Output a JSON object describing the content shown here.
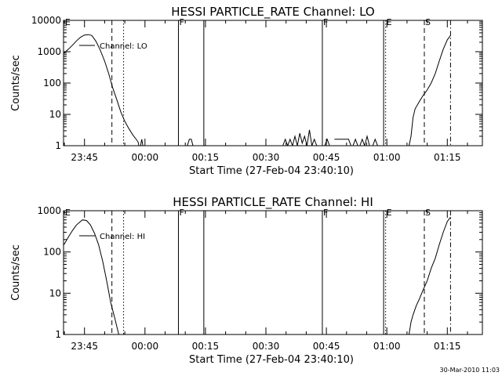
{
  "footer": {
    "timestamp": "30-Mar-2010 11:03"
  },
  "chart_data": [
    {
      "type": "line",
      "title": "HESSI PARTICLE_RATE Channel: LO",
      "xlabel": "Start Time (27-Feb-04 23:40:10)",
      "ylabel": "Counts/sec",
      "yscale": "log",
      "ylim": [
        1,
        10000
      ],
      "xlim_minutes": [
        -5.2,
        98.7
      ],
      "xticks": [
        {
          "t": 0,
          "label": "23:45"
        },
        {
          "t": 15,
          "label": "00:00"
        },
        {
          "t": 30,
          "label": "00:15"
        },
        {
          "t": 45,
          "label": "00:30"
        },
        {
          "t": 60,
          "label": "00:45"
        },
        {
          "t": 75,
          "label": "01:00"
        },
        {
          "t": 90,
          "label": "01:15"
        }
      ],
      "yticks": [
        {
          "v": 1,
          "label": "1"
        },
        {
          "v": 10,
          "label": "10"
        },
        {
          "v": 100,
          "label": "100"
        },
        {
          "v": 1000,
          "label": "1000"
        },
        {
          "v": 10000,
          "label": "10000"
        }
      ],
      "legend": {
        "position": "top-left",
        "entries": [
          "Channel: LO"
        ]
      },
      "grid": false,
      "series": [
        {
          "name": "Channel: LO",
          "segments": [
            [
              [
                -5.1,
                900
              ],
              [
                -4,
                1200
              ],
              [
                -3,
                1600
              ],
              [
                -2,
                2200
              ],
              [
                -1,
                2900
              ],
              [
                0,
                3400
              ],
              [
                1,
                3500
              ],
              [
                1.8,
                3300
              ],
              [
                2.8,
                2200
              ],
              [
                3.8,
                1200
              ],
              [
                5,
                500
              ],
              [
                6,
                200
              ],
              [
                7,
                70
              ],
              [
                8,
                30
              ],
              [
                9,
                12
              ],
              [
                10,
                6
              ],
              [
                11,
                3.5
              ],
              [
                12,
                2.2
              ],
              [
                13,
                1.5
              ],
              [
                13.3,
                1.3
              ],
              [
                13.5,
                1
              ]
            ],
            [
              [
                13.9,
                1
              ],
              [
                14.2,
                1.6
              ],
              [
                14.5,
                1
              ]
            ],
            [
              [
                25.5,
                1
              ],
              [
                26,
                1.6
              ],
              [
                26.5,
                1.6
              ],
              [
                26.9,
                1
              ]
            ],
            [
              [
                49.2,
                1
              ],
              [
                49.8,
                1.6
              ],
              [
                50.4,
                1
              ],
              [
                51,
                1.6
              ],
              [
                51.6,
                1
              ],
              [
                52.2,
                2
              ],
              [
                52.8,
                1
              ],
              [
                53.4,
                2.5
              ],
              [
                54,
                1.2
              ],
              [
                54.6,
                2
              ],
              [
                55.2,
                1
              ],
              [
                55.8,
                3.2
              ],
              [
                56.4,
                1
              ],
              [
                57,
                1.6
              ],
              [
                57.6,
                1
              ]
            ],
            [
              [
                59.6,
                1
              ],
              [
                60.2,
                1.6
              ],
              [
                60.8,
                1
              ]
            ],
            [
              [
                62,
                1.6
              ],
              [
                65.5,
                1.6
              ],
              [
                66.1,
                1
              ]
            ],
            [
              [
                66.6,
                1
              ],
              [
                67.2,
                1.6
              ],
              [
                67.8,
                1
              ]
            ],
            [
              [
                68.3,
                1
              ],
              [
                68.9,
                1.6
              ],
              [
                69.5,
                1
              ],
              [
                70.1,
                2
              ],
              [
                70.7,
                1
              ]
            ],
            [
              [
                71.5,
                1
              ],
              [
                72.1,
                1.6
              ],
              [
                72.7,
                1
              ]
            ],
            [
              [
                80.5,
                1
              ],
              [
                81,
                2
              ],
              [
                81.5,
                8
              ],
              [
                82,
                15
              ],
              [
                83,
                25
              ],
              [
                84,
                40
              ],
              [
                85,
                60
              ],
              [
                86,
                100
              ],
              [
                87,
                200
              ],
              [
                88,
                500
              ],
              [
                89,
                1200
              ],
              [
                90,
                2400
              ],
              [
                90.8,
                3300
              ]
            ]
          ]
        }
      ],
      "markers": [
        {
          "t": -5.0,
          "style": "none",
          "label": "E"
        },
        {
          "t": 6.8,
          "style": "dashed",
          "label": ""
        },
        {
          "t": 9.7,
          "style": "dotted",
          "label": ""
        },
        {
          "t": 23.3,
          "style": "solid",
          "label": "F"
        },
        {
          "t": 29.6,
          "style": "solid",
          "label": ""
        },
        {
          "t": 59.0,
          "style": "solid",
          "label": "F"
        },
        {
          "t": 74.2,
          "style": "solid",
          "label": ""
        },
        {
          "t": 74.7,
          "style": "dotted",
          "label": "E"
        },
        {
          "t": 84.3,
          "style": "dashed",
          "label": "S"
        },
        {
          "t": 90.8,
          "style": "dashdot",
          "label": ""
        }
      ]
    },
    {
      "type": "line",
      "title": "HESSI PARTICLE_RATE Channel: HI",
      "xlabel": "Start Time (27-Feb-04 23:40:10)",
      "ylabel": "Counts/sec",
      "yscale": "log",
      "ylim": [
        1,
        1000
      ],
      "xlim_minutes": [
        -5.2,
        98.7
      ],
      "xticks": [
        {
          "t": 0,
          "label": "23:45"
        },
        {
          "t": 15,
          "label": "00:00"
        },
        {
          "t": 30,
          "label": "00:15"
        },
        {
          "t": 45,
          "label": "00:30"
        },
        {
          "t": 60,
          "label": "00:45"
        },
        {
          "t": 75,
          "label": "01:00"
        },
        {
          "t": 90,
          "label": "01:15"
        }
      ],
      "yticks": [
        {
          "v": 1,
          "label": "1"
        },
        {
          "v": 10,
          "label": "10"
        },
        {
          "v": 100,
          "label": "100"
        },
        {
          "v": 1000,
          "label": "1000"
        }
      ],
      "legend": {
        "position": "top-left",
        "entries": [
          "Channel: HI"
        ]
      },
      "grid": false,
      "series": [
        {
          "name": "Channel: HI",
          "segments": [
            [
              [
                -5.1,
                150
              ],
              [
                -4,
                230
              ],
              [
                -3,
                330
              ],
              [
                -2,
                450
              ],
              [
                -1,
                550
              ],
              [
                -0.5,
                600
              ],
              [
                0.5,
                580
              ],
              [
                1.5,
                450
              ],
              [
                2.5,
                280
              ],
              [
                3.5,
                150
              ],
              [
                4.5,
                60
              ],
              [
                5.5,
                20
              ],
              [
                6.5,
                6
              ],
              [
                7.5,
                2.5
              ],
              [
                8.5,
                1
              ]
            ],
            [
              [
                80.5,
                1
              ],
              [
                81,
                2
              ],
              [
                81.5,
                3
              ],
              [
                82.3,
                5
              ],
              [
                83,
                7
              ],
              [
                84,
                12
              ],
              [
                85,
                20
              ],
              [
                86,
                40
              ],
              [
                87,
                70
              ],
              [
                88,
                150
              ],
              [
                89,
                300
              ],
              [
                90,
                550
              ],
              [
                90.8,
                700
              ]
            ]
          ]
        }
      ],
      "markers": [
        {
          "t": -5.0,
          "style": "none",
          "label": "E"
        },
        {
          "t": 6.8,
          "style": "dashed",
          "label": ""
        },
        {
          "t": 9.7,
          "style": "dotted",
          "label": ""
        },
        {
          "t": 23.3,
          "style": "solid",
          "label": "F"
        },
        {
          "t": 29.6,
          "style": "solid",
          "label": ""
        },
        {
          "t": 59.0,
          "style": "solid",
          "label": "F"
        },
        {
          "t": 74.2,
          "style": "solid",
          "label": ""
        },
        {
          "t": 74.7,
          "style": "dotted",
          "label": "E"
        },
        {
          "t": 84.3,
          "style": "dashed",
          "label": "S"
        },
        {
          "t": 90.8,
          "style": "dashdot",
          "label": ""
        }
      ]
    }
  ]
}
